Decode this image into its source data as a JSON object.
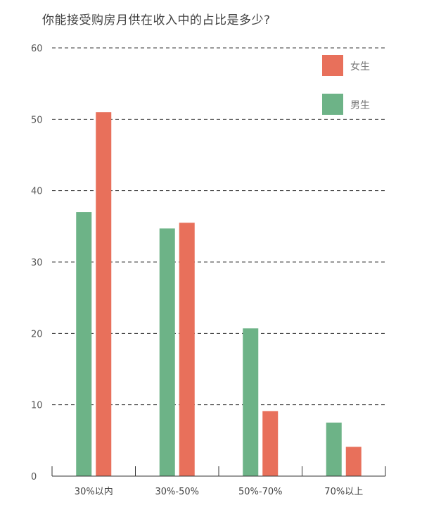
{
  "chart_data": {
    "type": "bar",
    "title": "你能接受购房月供在收入中的占比是多少?",
    "categories": [
      "30%以内",
      "30%-50%",
      "50%-70%",
      "70%以上"
    ],
    "series": [
      {
        "name": "男生",
        "color": "#6db387",
        "values": [
          37,
          34.7,
          20.7,
          7.5
        ]
      },
      {
        "name": "女生",
        "color": "#e8705b",
        "values": [
          51,
          35.5,
          9.1,
          4.1
        ]
      }
    ],
    "y_ticks": [
      "0",
      "10",
      "20",
      "30",
      "40",
      "50",
      "60"
    ],
    "ylim": [
      0,
      60
    ],
    "grid": true,
    "legend": [
      "女生",
      "男生"
    ],
    "legend_position": "top-right"
  }
}
